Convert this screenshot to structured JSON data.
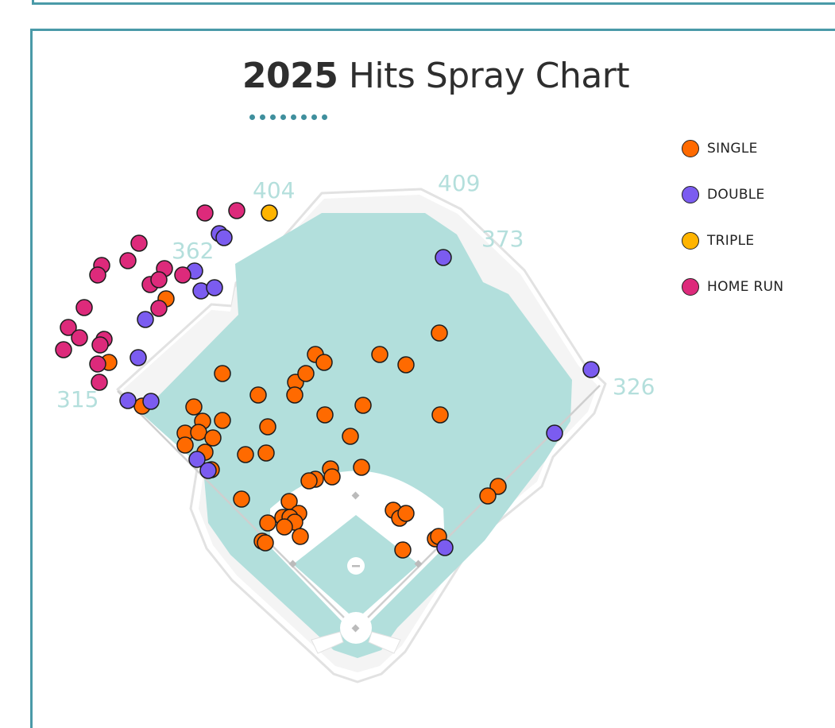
{
  "title": {
    "year": "2025",
    "text": "Hits Spray Chart"
  },
  "colors": {
    "single": "#ff6a00",
    "double": "#7b5cf0",
    "triple": "#ffb400",
    "home_run": "#dd2a7b",
    "field": "#b2dfdc",
    "frame": "#4a9aa8"
  },
  "distances": [
    "404",
    "409",
    "373",
    "362",
    "315",
    "326"
  ],
  "chart_data": {
    "type": "scatter",
    "title": "2025 Hits Spray Chart",
    "legend": [
      {
        "key": "single",
        "label": "SINGLE"
      },
      {
        "key": "double",
        "label": "DOUBLE"
      },
      {
        "key": "triple",
        "label": "TRIPLE"
      },
      {
        "key": "home_run",
        "label": "HOME RUN"
      }
    ],
    "legend_position": "right",
    "series": [
      {
        "name": "SINGLE",
        "key": "single",
        "points": [
          [
            209,
            376
          ],
          [
            137,
            456
          ],
          [
            179,
            511
          ],
          [
            280,
            470
          ],
          [
            244,
            512
          ],
          [
            280,
            529
          ],
          [
            255,
            530
          ],
          [
            233,
            545
          ],
          [
            250,
            544
          ],
          [
            268,
            551
          ],
          [
            233,
            560
          ],
          [
            258,
            569
          ],
          [
            266,
            591
          ],
          [
            309,
            572
          ],
          [
            335,
            570
          ],
          [
            337,
            537
          ],
          [
            325,
            497
          ],
          [
            372,
            481
          ],
          [
            371,
            497
          ],
          [
            385,
            470
          ],
          [
            397,
            446
          ],
          [
            408,
            456
          ],
          [
            478,
            446
          ],
          [
            511,
            459
          ],
          [
            553,
            419
          ],
          [
            409,
            522
          ],
          [
            457,
            510
          ],
          [
            441,
            549
          ],
          [
            554,
            522
          ],
          [
            455,
            588
          ],
          [
            416,
            590
          ],
          [
            418,
            600
          ],
          [
            397,
            603
          ],
          [
            389,
            605
          ],
          [
            304,
            628
          ],
          [
            364,
            631
          ],
          [
            376,
            646
          ],
          [
            356,
            651
          ],
          [
            365,
            651
          ],
          [
            371,
            657
          ],
          [
            358,
            663
          ],
          [
            337,
            658
          ],
          [
            330,
            681
          ],
          [
            334,
            683
          ],
          [
            378,
            675
          ],
          [
            495,
            642
          ],
          [
            503,
            652
          ],
          [
            511,
            646
          ],
          [
            548,
            678
          ],
          [
            552,
            675
          ],
          [
            507,
            692
          ],
          [
            627,
            612
          ],
          [
            614,
            624
          ]
        ]
      },
      {
        "name": "DOUBLE",
        "key": "double",
        "points": [
          [
            558,
            324
          ],
          [
            276,
            294
          ],
          [
            282,
            299
          ],
          [
            245,
            341
          ],
          [
            253,
            366
          ],
          [
            270,
            362
          ],
          [
            183,
            402
          ],
          [
            174,
            450
          ],
          [
            161,
            504
          ],
          [
            190,
            505
          ],
          [
            248,
            578
          ],
          [
            262,
            592
          ],
          [
            560,
            689
          ],
          [
            698,
            545
          ],
          [
            744,
            465
          ]
        ]
      },
      {
        "name": "TRIPLE",
        "key": "triple",
        "points": [
          [
            339,
            268
          ]
        ]
      },
      {
        "name": "HOME RUN",
        "key": "home_run",
        "points": [
          [
            258,
            268
          ],
          [
            298,
            265
          ],
          [
            175,
            306
          ],
          [
            161,
            328
          ],
          [
            128,
            334
          ],
          [
            123,
            346
          ],
          [
            207,
            338
          ],
          [
            230,
            346
          ],
          [
            189,
            358
          ],
          [
            200,
            352
          ],
          [
            200,
            388
          ],
          [
            106,
            387
          ],
          [
            86,
            412
          ],
          [
            100,
            425
          ],
          [
            131,
            427
          ],
          [
            126,
            434
          ],
          [
            80,
            440
          ],
          [
            123,
            458
          ],
          [
            125,
            481
          ]
        ]
      }
    ]
  }
}
